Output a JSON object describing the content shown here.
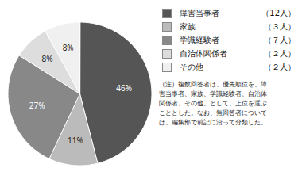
{
  "chart_data": {
    "type": "pie",
    "categories": [
      "障害当事者",
      "家族",
      "学識経験者",
      "自治体関係者",
      "その他"
    ],
    "values": [
      46,
      11,
      27,
      8,
      8
    ],
    "value_labels": [
      "46%",
      "11%",
      "27%",
      "8%",
      "8%"
    ],
    "count_labels": [
      "（12人）",
      "（３人）",
      "（７人）",
      "（２人）",
      "（２人）"
    ],
    "colors": [
      "#555555",
      "#bbbbbb",
      "#888888",
      "#dddddd",
      "#f0f0f0"
    ],
    "data_labels": true,
    "legend": "right",
    "annotations": [
      "（注）複数回答者は、優先順位を、障\n害当事者、家族、学識経験者、自治体\n関係者、その他、として、上位を選ぶ\nこととした。なお、無回答者について\nは、編集部で前記に沿って分類した。"
    ]
  }
}
